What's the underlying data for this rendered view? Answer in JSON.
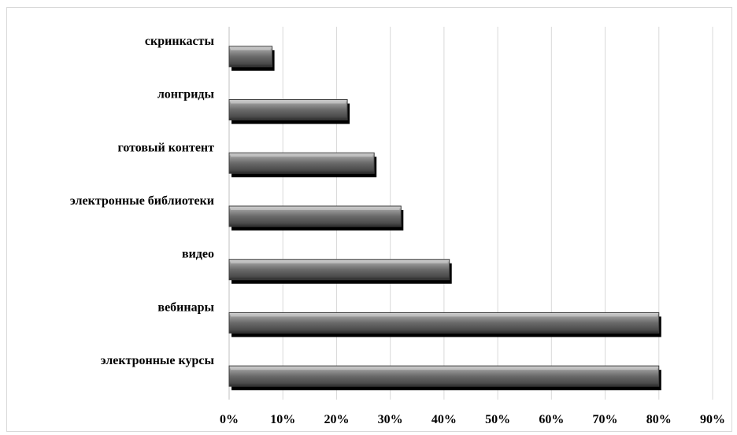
{
  "chart_data": {
    "type": "bar",
    "orientation": "horizontal",
    "title": "",
    "xlabel": "",
    "ylabel": "",
    "categories": [
      "скринкасты",
      "лонгриды",
      "готовый контент ",
      "электронные библиотеки",
      "видео",
      "вебинары",
      "электронные курсы"
    ],
    "values": [
      8,
      22,
      27,
      32,
      41,
      80,
      80
    ],
    "xlim": [
      0,
      90
    ],
    "x_ticks": [
      "0%",
      "10%",
      "20%",
      "30%",
      "40%",
      "50%",
      "60%",
      "70%",
      "80%",
      "90%"
    ],
    "value_unit": "%",
    "grid": "vertical major gridlines",
    "legend": "none",
    "bar_color": "#5a5a5a",
    "bar_shadow_color": "#000000",
    "bar_highlight_color": "#c8c8c8"
  }
}
